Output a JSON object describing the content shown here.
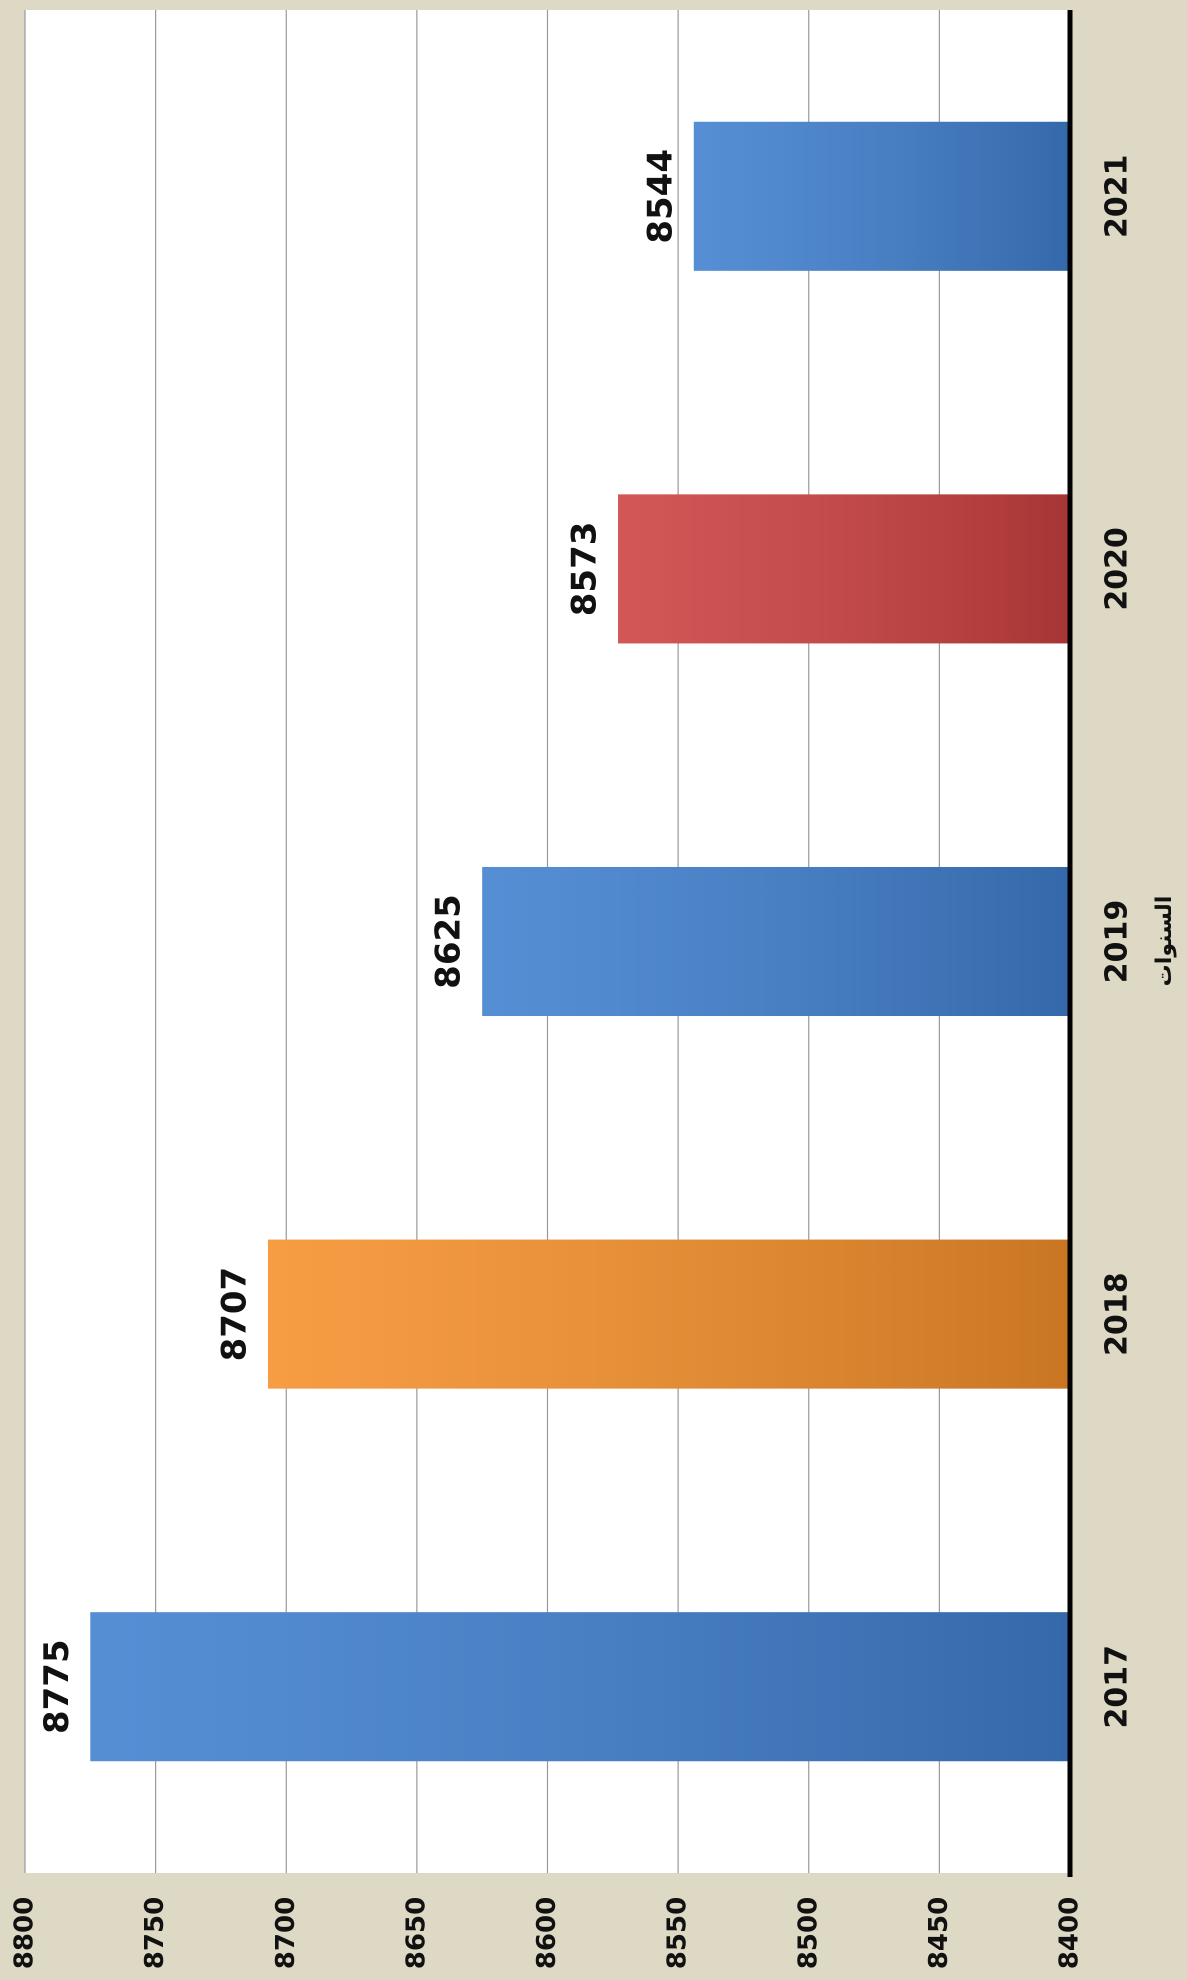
{
  "chart_data": {
    "type": "bar",
    "orientation": "rotated",
    "x_axis_label": "السنوات",
    "categories": [
      "2017",
      "2018",
      "2019",
      "2020",
      "2021"
    ],
    "values": [
      8775,
      8707,
      8625,
      8573,
      8544
    ],
    "colors": [
      "#3f7fcf",
      "#f58f2a",
      "#3f7fcf",
      "#cc4040",
      "#3f7fcf"
    ],
    "ylim": [
      8400,
      8800
    ],
    "yticks": [
      8400,
      8450,
      8500,
      8550,
      8600,
      8650,
      8700,
      8750,
      8800
    ],
    "grid": true
  }
}
